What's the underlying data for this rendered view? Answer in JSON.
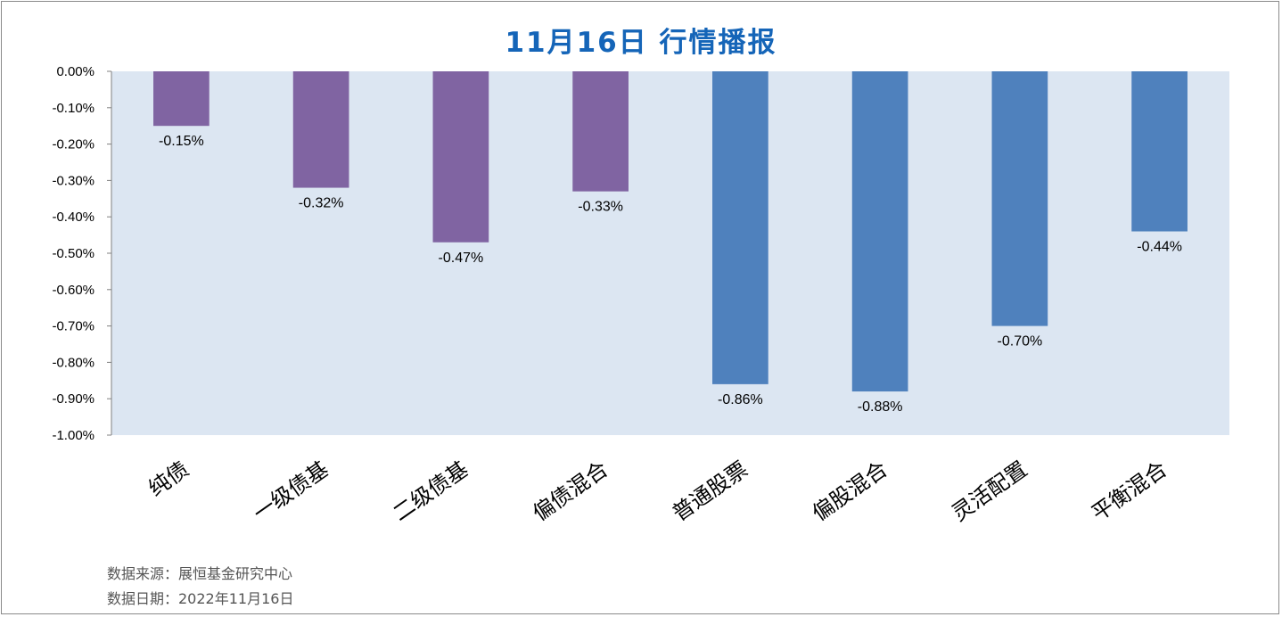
{
  "title": "11月16日  行情播报",
  "footnotes": {
    "source": "数据来源：展恒基金研究中心",
    "date": "数据日期：2022年11月16日"
  },
  "colors": {
    "plot_background": "#dce6f2",
    "bond_bar": "#8064a2",
    "equity_bar": "#4f81bd",
    "title": "#1565b8"
  },
  "chart_data": {
    "type": "bar",
    "title": "11月16日  行情播报",
    "categories": [
      "纯债",
      "一级债基",
      "二级债基",
      "偏债混合",
      "普通股票",
      "偏股混合",
      "灵活配置",
      "平衡混合"
    ],
    "values": [
      -0.15,
      -0.32,
      -0.47,
      -0.33,
      -0.86,
      -0.88,
      -0.7,
      -0.44
    ],
    "value_unit": "%",
    "data_labels": [
      "-0.15%",
      "-0.32%",
      "-0.47%",
      "-0.33%",
      "-0.86%",
      "-0.88%",
      "-0.70%",
      "-0.44%"
    ],
    "bar_groups": [
      "bond",
      "bond",
      "bond",
      "bond",
      "equity",
      "equity",
      "equity",
      "equity"
    ],
    "ylim": [
      -1.0,
      0.0
    ],
    "yticks": [
      0.0,
      -0.1,
      -0.2,
      -0.3,
      -0.4,
      -0.5,
      -0.6,
      -0.7,
      -0.8,
      -0.9,
      -1.0
    ],
    "ytick_labels": [
      "0.00%",
      "-0.10%",
      "-0.20%",
      "-0.30%",
      "-0.40%",
      "-0.50%",
      "-0.60%",
      "-0.70%",
      "-0.80%",
      "-0.90%",
      "-1.00%"
    ],
    "xlabel": "",
    "ylabel": "",
    "grid": false,
    "legend": "none",
    "category_label_rotation": -35
  }
}
